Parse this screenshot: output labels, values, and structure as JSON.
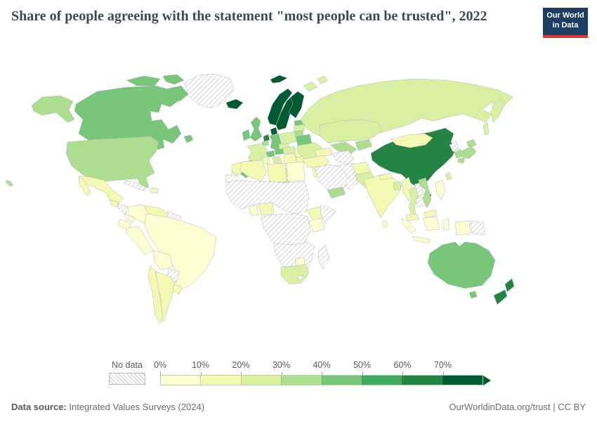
{
  "header": {
    "title": "Share of people agreeing with the statement \"most people can be trusted\", 2022"
  },
  "logo": {
    "line1": "Our World",
    "line2": "in Data"
  },
  "footer": {
    "source_label": "Data source:",
    "source_text": " Integrated Values Surveys (2024)",
    "link": "OurWorldinData.org/trust",
    "license": " | CC BY"
  },
  "chart_data": {
    "type": "choropleth",
    "title": "Share of people agreeing with the statement \"most people can be trusted\", 2022",
    "unit": "%",
    "legend": {
      "no_data_label": "No data",
      "ticks": [
        "0%",
        "10%",
        "20%",
        "30%",
        "40%",
        "50%",
        "60%",
        "70%"
      ],
      "bins": [
        {
          "range": "0-10%",
          "color": "#fdfdd2"
        },
        {
          "range": "10-20%",
          "color": "#f3f8b2"
        },
        {
          "range": "20-30%",
          "color": "#d9f0a3"
        },
        {
          "range": "30-40%",
          "color": "#addd8e"
        },
        {
          "range": "40-50%",
          "color": "#78c679"
        },
        {
          "range": "50-60%",
          "color": "#41ab5d"
        },
        {
          "range": "60-70%",
          "color": "#238443"
        },
        {
          "range": "70%+",
          "color": "#005a32"
        }
      ],
      "hatch_color": "#c9c9c9"
    },
    "regions": {
      "Greenland": "No data",
      "Canada": "40-50%",
      "United States": "30-40%",
      "Hawaii (United States)": "30-40%",
      "Mexico": "10-20%",
      "Guatemala": "10-20%",
      "Honduras & Nicaragua": "No data",
      "Costa Rica & Panama": "0-10%",
      "Cuba": "No data",
      "Dominican Republic": "10-20%",
      "Colombia": "0-10%",
      "Venezuela": "10-20%",
      "Guyana & Suriname": "No data",
      "Ecuador": "0-10%",
      "Peru": "0-10%",
      "Brazil": "0-10%",
      "Bolivia": "0-10%",
      "Paraguay": "No data",
      "Chile": "10-20%",
      "Argentina": "10-20%",
      "Uruguay": "10-20%",
      "Iceland": "70%+",
      "Norway": "70%+",
      "Svalbard (Norway)": "70%+",
      "Sweden": "70%+",
      "Finland": "70%+",
      "Denmark": "70%+",
      "United Kingdom": "40-50%",
      "Ireland": "40-50%",
      "Netherlands": "60-70%",
      "Belgium": "30-40%",
      "Germany": "40-50%",
      "France": "20-30%",
      "Switzerland": "40-50%",
      "Austria": "40-50%",
      "Czechia": "20-30%",
      "Poland": "20-30%",
      "Spain": "40-50%",
      "Portugal": "10-20%",
      "Italy": "20-30%",
      "Slovakia & Hungary": "20-30%",
      "Balkans": "10-20%",
      "Greece": "0-10%",
      "Romania": "10-20%",
      "Bulgaria": "10-20%",
      "Estonia": "40-50%",
      "Latvia": "20-30%",
      "Lithuania": "30-40%",
      "Belarus": "40-50%",
      "Ukraine": "20-30%",
      "Russia": "20-30%",
      "Caucasus": "10-20%",
      "Turkey": "10-20%",
      "Levant": "10-20%",
      "Iraq": "0-10%",
      "Iran": "No data",
      "Saudi Arabia": "No data",
      "Yemen": "30-40%",
      "Oman & Gulf": "No data",
      "Kazakhstan": "20-30%",
      "Uzbekistan": "30-40%",
      "Turkmenistan": "No data",
      "Kyrgyzstan & Tajikistan": "30-40%",
      "Afghanistan": "10-20%",
      "Pakistan": "20-30%",
      "India": "10-20%",
      "Nepal": "10-20%",
      "Bangladesh": "20-30%",
      "Sri Lanka": "0-10%",
      "Myanmar": "10-20%",
      "Thailand": "20-30%",
      "Laos": "No data",
      "Cambodia": "No data",
      "Vietnam": "30-40%",
      "Malaysia": "10-20%",
      "Indonesia": "0-10%",
      "Philippines": "0-10%",
      "Papua New Guinea": "No data",
      "China": "60-70%",
      "Mongolia": "10-20%",
      "Taiwan": "20-30%",
      "North Korea": "No data",
      "South Korea": "30-40%",
      "Japan": "30-40%",
      "Australia": "40-50%",
      "New Zealand": "60-70%",
      "Morocco": "10-20%",
      "Western Sahara": "No data",
      "Algeria": "10-20%",
      "Tunisia": "10-20%",
      "Libya": "10-20%",
      "Egypt": "0-10%",
      "Sahel & Sudan": "No data",
      "Ghana": "0-10%",
      "Nigeria": "10-20%",
      "Central Africa": "No data",
      "Ethiopia": "10-20%",
      "Somalia": "No data",
      "Kenya": "0-10%",
      "Southern Africa interior": "No data",
      "Zimbabwe": "0-10%",
      "South Africa": "20-30%",
      "Lesotho": "No data",
      "Madagascar": "No data"
    }
  }
}
